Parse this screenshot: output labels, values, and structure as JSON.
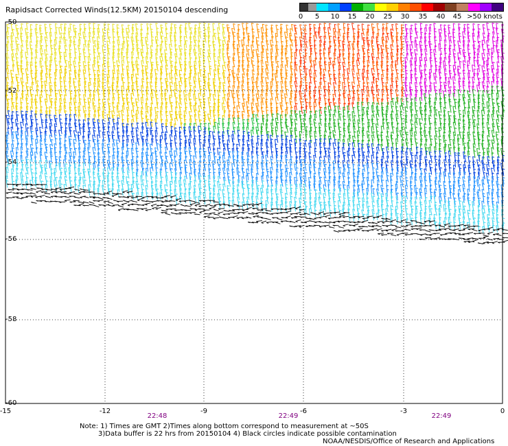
{
  "title": "Rapidsact Corrected Winds(12.5KM) 20150104 descending",
  "legend": {
    "colors": [
      "#333333",
      "#999999",
      "#00e5ff",
      "#00a0ff",
      "#0040ff",
      "#00b000",
      "#40e040",
      "#ffff00",
      "#ffd000",
      "#ff8000",
      "#ff5000",
      "#ff0000",
      "#a00000",
      "#804020",
      "#c08060",
      "#ff00ff",
      "#a000ff",
      "#400080"
    ],
    "labels": [
      "0",
      "5",
      "10",
      "15",
      "20",
      "25",
      "30",
      "35",
      "40",
      "45",
      ">50 knots"
    ]
  },
  "map": {
    "lat_labels": [
      "-50",
      "-52",
      "-54",
      "-56",
      "-58",
      "-60"
    ],
    "lon_labels": [
      "-15",
      "-12",
      "-9",
      "-6",
      "-3",
      "0"
    ],
    "time_labels": [
      "22:48",
      "22:49",
      "22:49"
    ],
    "lat_range": [
      -60,
      -50
    ],
    "lon_range": [
      -15,
      0
    ],
    "gridlines": true,
    "projection": "cylindrical"
  },
  "notes": {
    "line1": "Note: 1) Times are GMT 2)Times along bottom correspond to measurement at ~50S",
    "line2": "3)Data buffer is 22 hrs from 20150104 4) Black circles indicate possible contamination",
    "credit": "NOAA/NESDIS/Office of Research and Applications"
  }
}
